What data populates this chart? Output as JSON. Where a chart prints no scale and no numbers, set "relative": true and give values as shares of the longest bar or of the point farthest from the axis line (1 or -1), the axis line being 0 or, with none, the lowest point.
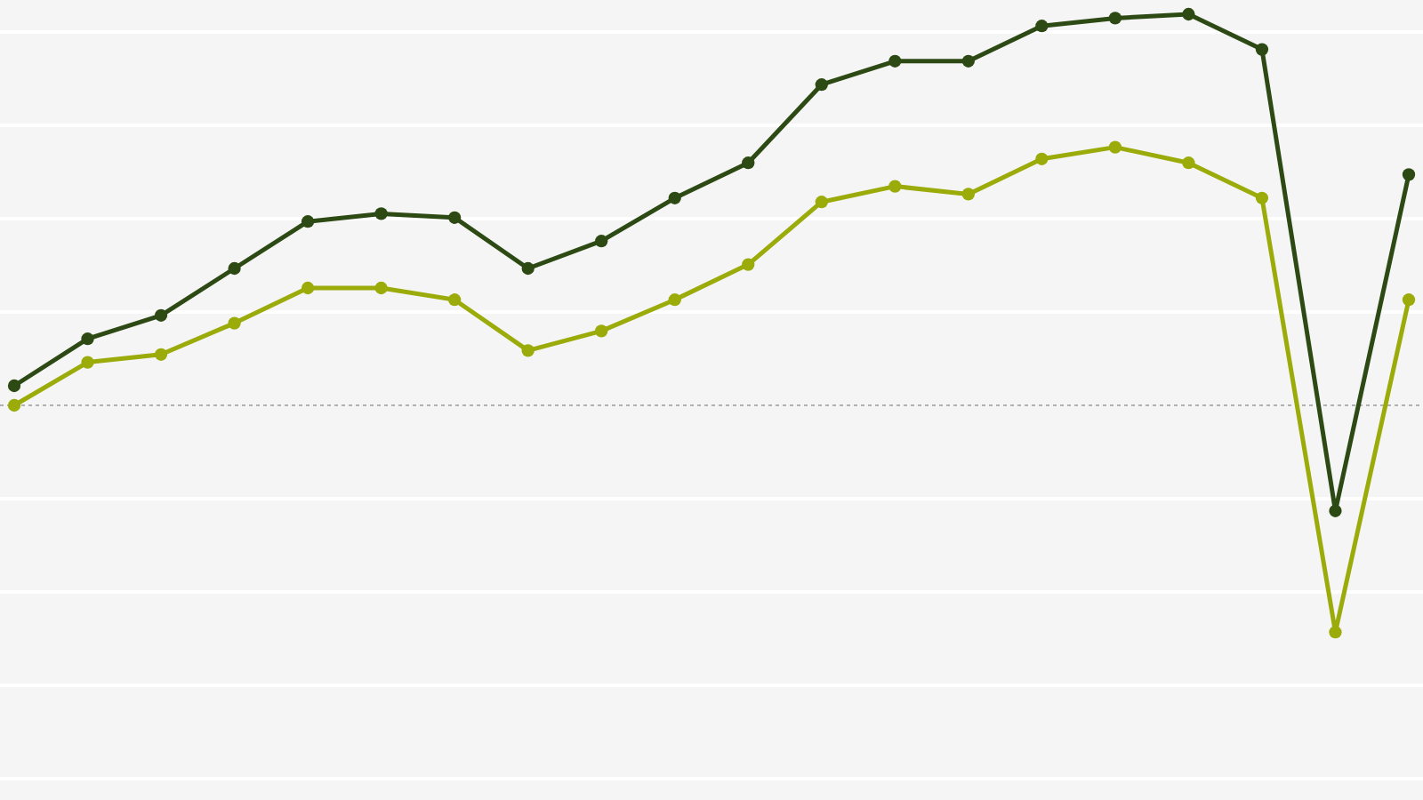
{
  "chart_data": {
    "type": "line",
    "relative": true,
    "categories": [
      null,
      null,
      null,
      null,
      null,
      null,
      null,
      null,
      null,
      null,
      null,
      null,
      null,
      null,
      null,
      null,
      null,
      null,
      null,
      null
    ],
    "series": [
      {
        "color": "#2d4a14",
        "values": [
          0.05,
          0.17,
          0.23,
          0.35,
          0.47,
          0.49,
          0.48,
          0.35,
          0.42,
          0.53,
          0.62,
          0.82,
          0.88,
          0.88,
          0.97,
          0.99,
          1,
          0.91,
          -0.27,
          0.59
        ]
      },
      {
        "color": "#9aab0a",
        "values": [
          0,
          0.11,
          0.13,
          0.21,
          0.3,
          0.3,
          0.27,
          0.14,
          0.19,
          0.27,
          0.36,
          0.52,
          0.56,
          0.54,
          0.63,
          0.66,
          0.62,
          0.53,
          -0.58,
          0.27
        ]
      }
    ],
    "ref_lines": [
      {
        "axis": "y",
        "value": 0,
        "color": "#b0b0b0",
        "line_style": "dotted"
      }
    ],
    "grid": true,
    "marker": "circle",
    "line_style": "solid"
  }
}
